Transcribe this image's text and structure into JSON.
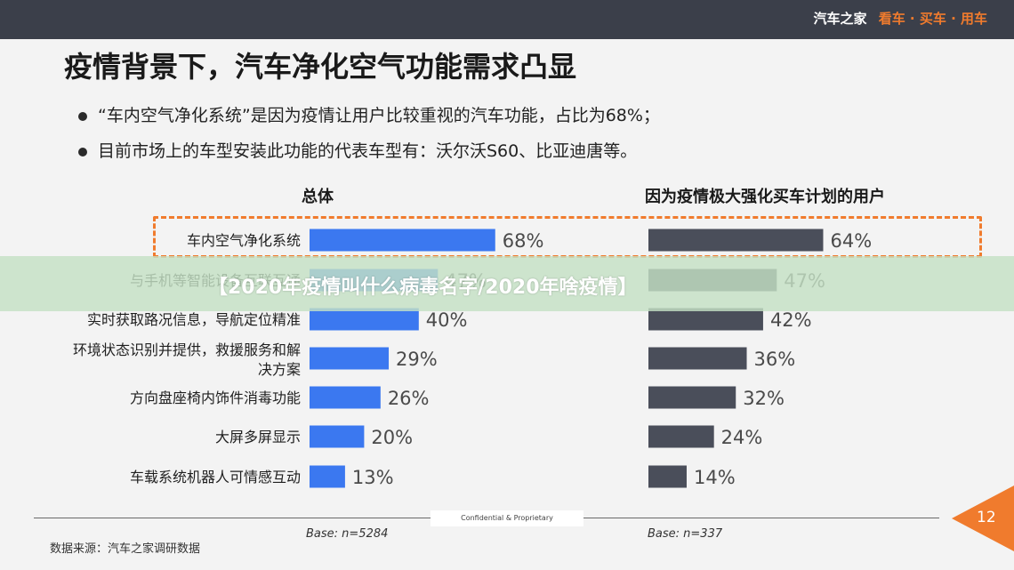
{
  "header": {
    "brand": "汽车之家",
    "tagline": "看车 · 买车 · 用车"
  },
  "title": "疫情背景下，汽车净化空气功能需求凸显",
  "bullets": [
    "“车内空气净化系统”是因为疫情让用户比较重视的汽车功能，占比为68%；",
    "目前市场上的车型安装此功能的代表车型有：沃尔沃S60、比亚迪唐等。"
  ],
  "overlay_banner": "【2020年疫情叫什么病毒名字/2020年啥疫情】",
  "footer": {
    "confidential": "Confidential & Proprietary",
    "source": "数据来源：汽车之家调研数据",
    "page_number": "12"
  },
  "colors": {
    "overall_bar": "#3b78f0",
    "boosted_bar": "#4a4e5a",
    "highlight": "#f07b2d",
    "header_bg": "#3b3f4a"
  },
  "chart_data": [
    {
      "type": "bar",
      "orientation": "horizontal",
      "title": "总体",
      "base_label": "Base:  n=5284",
      "categories": [
        "车内空气净化系统",
        "与手机等智能设备互联互通",
        "实时获取路况信息，导航定位精准",
        "环境状态识别并提供，救援服务和解决方案",
        "方向盘座椅内饰件消毒功能",
        "大屏多屏显示",
        "车载系统机器人可情感互动"
      ],
      "category_lines": [
        [
          "车内空气净化系统"
        ],
        [
          "与手机等智能设备互联互通"
        ],
        [
          "实时获取路况信息，导航定位精准"
        ],
        [
          "环境状态识别并提供，救援服务和解",
          "决方案"
        ],
        [
          "方向盘座椅内饰件消毒功能"
        ],
        [
          "大屏多屏显示"
        ],
        [
          "车载系统机器人可情感互动"
        ]
      ],
      "values": [
        68,
        47,
        40,
        29,
        26,
        20,
        13
      ],
      "value_labels": [
        "68%",
        "47%",
        "40%",
        "29%",
        "26%",
        "20%",
        "13%"
      ],
      "unit": "%",
      "highlighted_category": "车内空气净化系统"
    },
    {
      "type": "bar",
      "orientation": "horizontal",
      "title": "因为疫情极大强化买车计划的用户",
      "base_label": "Base:  n=337",
      "categories": [
        "车内空气净化系统",
        "与手机等智能设备互联互通",
        "实时获取路况信息，导航定位精准",
        "环境状态识别并提供，救援服务和解决方案",
        "方向盘座椅内饰件消毒功能",
        "大屏多屏显示",
        "车载系统机器人可情感互动"
      ],
      "values": [
        64,
        47,
        42,
        36,
        32,
        24,
        14
      ],
      "value_labels": [
        "64%",
        "47%",
        "42%",
        "36%",
        "32%",
        "24%",
        "14%"
      ],
      "unit": "%"
    }
  ]
}
